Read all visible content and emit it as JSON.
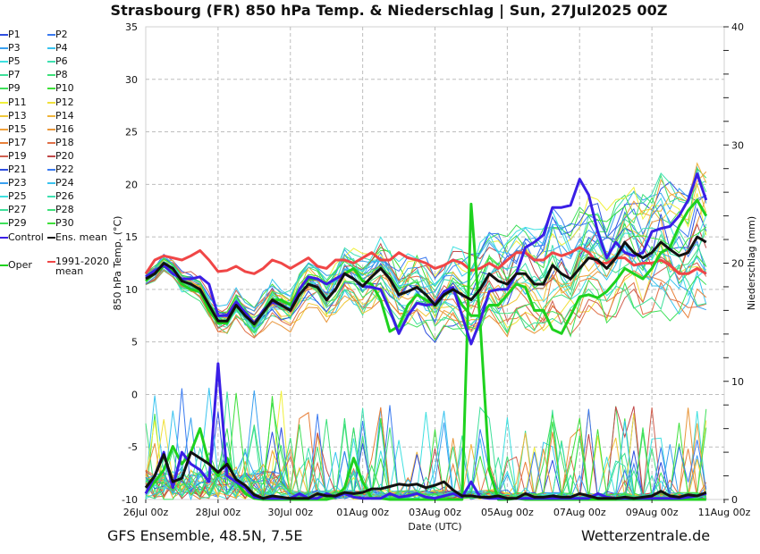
{
  "title": "Strasbourg  (FR)  850 hPa Temp. & Niederschlag | Sun, 27Jul2025 00Z",
  "footer": {
    "left": "GFS Ensemble, 48.5N, 7.5E",
    "right": "Wetterzentrale.de"
  },
  "legend": [
    {
      "label": "P1",
      "color": "#2f4fe0"
    },
    {
      "label": "P2",
      "color": "#3a7af0"
    },
    {
      "label": "P3",
      "color": "#3aa0f0"
    },
    {
      "label": "P4",
      "color": "#39c3ef"
    },
    {
      "label": "P5",
      "color": "#3ee0e0"
    },
    {
      "label": "P6",
      "color": "#3ee0b0"
    },
    {
      "label": "P7",
      "color": "#3ee09a"
    },
    {
      "label": "P8",
      "color": "#3ee07a"
    },
    {
      "label": "P9",
      "color": "#3ee05a"
    },
    {
      "label": "P10",
      "color": "#3ee03a"
    },
    {
      "label": "P11",
      "color": "#f0f03a"
    },
    {
      "label": "P12",
      "color": "#f0e03a"
    },
    {
      "label": "P13",
      "color": "#f0c83a"
    },
    {
      "label": "P14",
      "color": "#f0b43a"
    },
    {
      "label": "P15",
      "color": "#f0a03a"
    },
    {
      "label": "P16",
      "color": "#e8963a"
    },
    {
      "label": "P17",
      "color": "#e8803a"
    },
    {
      "label": "P18",
      "color": "#e07048"
    },
    {
      "label": "P19",
      "color": "#d06050"
    },
    {
      "label": "P20",
      "color": "#c04848"
    },
    {
      "label": "P21",
      "color": "#2f4fe0"
    },
    {
      "label": "P22",
      "color": "#3a7af0"
    },
    {
      "label": "P23",
      "color": "#3aa0f0"
    },
    {
      "label": "P24",
      "color": "#39c3ef"
    },
    {
      "label": "P25",
      "color": "#3ee0e0"
    },
    {
      "label": "P26",
      "color": "#3ee0b0"
    },
    {
      "label": "P27",
      "color": "#3ee09a"
    },
    {
      "label": "P28",
      "color": "#3ee07a"
    },
    {
      "label": "P29",
      "color": "#3ee05a"
    },
    {
      "label": "P30",
      "color": "#3ee03a"
    },
    {
      "label": "Control",
      "color": "#3a1ee6"
    },
    {
      "label": "Ens. mean",
      "color": "#111111"
    },
    {
      "label": "Oper",
      "color": "#1ed21e"
    },
    {
      "label": "1991-2020\nmean",
      "color": "#f04646"
    }
  ],
  "chart_data": {
    "type": "line",
    "title": "Strasbourg  (FR)  850 hPa Temp. & Niederschlag | Sun, 27Jul2025 00Z",
    "xlabel": "Date (UTC)",
    "ylabel": "850 hPa Temp. (°C)",
    "y2label": "Niederschlag (mm)",
    "ylim": [
      -10,
      35
    ],
    "y2lim": [
      0,
      40
    ],
    "yticks": [
      "35",
      "30",
      "25",
      "20",
      "15",
      "10",
      "5",
      "0",
      "-5",
      "-10"
    ],
    "y2ticks": [
      "40",
      "30",
      "20",
      "10",
      "0"
    ],
    "xticks": [
      "26Jul 00z",
      "28Jul 00z",
      "30Jul 00z",
      "01Aug 00z",
      "03Aug 00z",
      "05Aug 00z",
      "07Aug 00z",
      "09Aug 00z",
      "11Aug 00z"
    ],
    "x_step_hours": 6,
    "grid": true,
    "legend_position": "left",
    "temperature": {
      "control": [
        11.2,
        11.8,
        12.3,
        11.5,
        11.0,
        11.0,
        11.2,
        10.5,
        7.5,
        7.5,
        8.8,
        7.8,
        6.8,
        8.0,
        8.8,
        8.5,
        8.0,
        10.0,
        11.2,
        11.0,
        10.5,
        11.0,
        11.5,
        11.0,
        10.3,
        10.2,
        10.0,
        8.0,
        5.8,
        7.5,
        8.7,
        8.5,
        8.6,
        9.8,
        10.2,
        7.5,
        4.8,
        7.0,
        9.8,
        10.0,
        10.0,
        11.5,
        14.0,
        14.5,
        15.2,
        17.8,
        17.8,
        18.0,
        20.5,
        19.0,
        15.5,
        13.0,
        14.5,
        13.5,
        13.2,
        13.5,
        15.5,
        15.8,
        16.0,
        17.0,
        18.5,
        21.0,
        18.5
      ],
      "ens_mean": [
        11.0,
        11.5,
        12.5,
        12.0,
        10.8,
        10.5,
        10.0,
        8.5,
        7.0,
        7.0,
        8.5,
        7.5,
        6.7,
        7.8,
        9.0,
        8.5,
        8.0,
        9.5,
        10.5,
        10.2,
        9.0,
        10.0,
        11.5,
        11.0,
        10.3,
        11.2,
        12.0,
        11.0,
        9.5,
        9.8,
        10.2,
        9.5,
        8.5,
        9.5,
        10.0,
        9.5,
        9.0,
        10.0,
        11.5,
        10.8,
        10.5,
        11.5,
        11.5,
        10.5,
        10.5,
        12.3,
        11.5,
        11.0,
        12.0,
        13.0,
        12.8,
        12.0,
        13.0,
        14.5,
        13.5,
        13.0,
        13.5,
        14.5,
        13.8,
        13.2,
        13.5,
        15.0,
        14.5
      ],
      "oper": [
        10.8,
        11.5,
        12.2,
        11.8,
        10.5,
        10.0,
        9.8,
        8.0,
        6.8,
        6.8,
        8.8,
        7.8,
        6.5,
        8.0,
        9.0,
        9.0,
        8.5,
        10.0,
        11.0,
        11.0,
        10.5,
        11.0,
        11.5,
        12.0,
        10.8,
        10.5,
        9.0,
        6.0,
        6.5,
        8.5,
        9.5,
        9.0,
        8.5,
        9.5,
        10.0,
        8.5,
        7.5,
        7.5,
        8.5,
        8.5,
        9.5,
        10.5,
        10.2,
        8.0,
        8.0,
        6.2,
        5.8,
        7.5,
        9.3,
        9.5,
        9.2,
        9.8,
        10.8,
        12.0,
        11.5,
        11.0,
        12.0,
        13.5,
        14.0,
        16.0,
        17.5,
        18.5,
        17.0
      ],
      "climatology_1991_2020": [
        11.5,
        12.8,
        13.2,
        13.0,
        12.8,
        13.2,
        13.7,
        12.8,
        11.7,
        11.8,
        12.2,
        11.7,
        11.5,
        12.0,
        12.8,
        12.5,
        12.0,
        12.5,
        13.0,
        12.2,
        12.0,
        12.8,
        12.8,
        12.5,
        13.0,
        13.5,
        12.8,
        12.8,
        13.5,
        13.0,
        12.8,
        12.5,
        12.0,
        12.3,
        12.8,
        12.5,
        11.8,
        12.0,
        12.5,
        12.0,
        12.8,
        13.5,
        13.5,
        12.8,
        12.8,
        13.5,
        13.2,
        13.5,
        14.0,
        13.5,
        12.5,
        12.5,
        13.0,
        13.0,
        12.3,
        12.5,
        12.5,
        12.8,
        12.3,
        11.5,
        11.5,
        12.0,
        11.5
      ]
    },
    "precipitation": {
      "control": [
        0.5,
        2.0,
        4.0,
        1.0,
        4.0,
        3.0,
        2.5,
        1.5,
        11.5,
        2.0,
        1.5,
        1.0,
        0.2,
        0.1,
        0.1,
        0.1,
        0.1,
        0.5,
        0.1,
        0.1,
        0.5,
        0.2,
        0.5,
        0.2,
        0.1,
        0.1,
        0.1,
        0.5,
        0.2,
        0.3,
        0.5,
        0.2,
        0.1,
        0.3,
        0.5,
        0.2,
        1.5,
        0.2,
        0.1,
        0.1,
        0.1,
        0.1,
        0.1,
        0.1,
        0.1,
        0.1,
        0.1,
        0.1,
        0.1,
        0.1,
        0.5,
        0.2,
        0.1,
        0.1,
        0.1,
        0.1,
        0.1,
        0.1,
        0.1,
        0.1,
        0.2,
        0.3,
        0.5
      ],
      "ens_mean": [
        1.0,
        2.0,
        3.8,
        1.5,
        1.8,
        4.0,
        3.5,
        3.0,
        2.3,
        3.0,
        1.7,
        1.2,
        0.4,
        0.1,
        0.3,
        0.2,
        0.1,
        0.1,
        0.1,
        0.5,
        0.3,
        0.3,
        0.6,
        0.5,
        0.6,
        0.9,
        0.9,
        1.1,
        1.3,
        1.2,
        1.3,
        1.0,
        1.2,
        1.5,
        0.8,
        0.3,
        0.3,
        0.2,
        0.2,
        0.3,
        0.1,
        0.1,
        0.5,
        0.2,
        0.2,
        0.3,
        0.2,
        0.2,
        0.5,
        0.3,
        0.1,
        0.1,
        0.1,
        0.2,
        0.1,
        0.2,
        0.3,
        0.7,
        0.3,
        0.2,
        0.4,
        0.3,
        0.6
      ],
      "oper": [
        0.5,
        1.5,
        2.5,
        4.5,
        3.0,
        4.0,
        6.0,
        3.0,
        2.0,
        3.5,
        1.5,
        0.5,
        0.1,
        0.0,
        0.0,
        0.0,
        0.0,
        0.0,
        0.0,
        0.0,
        0.0,
        0.2,
        1.0,
        3.5,
        1.5,
        0.1,
        0.1,
        0.0,
        0.0,
        0.0,
        0.0,
        0.0,
        0.0,
        0.0,
        0.0,
        0.0,
        25.0,
        15.0,
        2.5,
        0.0,
        0.0,
        0.1,
        0.0,
        0.0,
        0.0,
        0.0,
        0.0,
        0.0,
        0.0,
        0.0,
        0.0,
        0.0,
        0.0,
        0.0,
        0.0,
        0.0,
        0.0,
        0.0,
        0.0,
        0.0,
        0.0,
        0.0,
        0.0
      ]
    },
    "member_temperature_spread": {
      "min": 4.0,
      "max": 22.0
    },
    "member_precipitation_spread": {
      "min": 0.0,
      "max": 17.0
    }
  }
}
